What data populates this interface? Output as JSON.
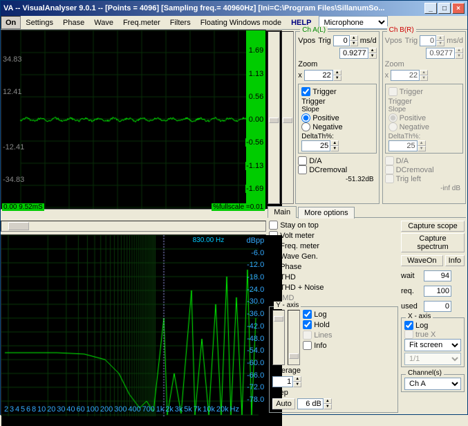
{
  "window": {
    "title": "VA -- VisualAnalyser 9.0.1 --  [Points = 4096]  [Sampling freq.= 40960Hz]  [Ini=C:\\Program Files\\SillanumSo..."
  },
  "menu": {
    "on": "On",
    "items": [
      "Settings",
      "Phase",
      "Wave",
      "Freq.meter",
      "Filters",
      "Floating Windows mode"
    ],
    "help": "HELP",
    "input_source": "Microphone"
  },
  "scope": {
    "time_info": "0.00   9.52mS",
    "scale_info": "%fullscale =0.01",
    "yticks_left": [
      "",
      "34.83",
      "12.41",
      "",
      "-12.41",
      "-34.83",
      ""
    ],
    "yticks_right": [
      "",
      "1.69",
      "1.13",
      "0.56",
      "0.00",
      "-0.56",
      "-1.13",
      "-1.69",
      ""
    ]
  },
  "spectrum": {
    "peak": "830.00 Hz",
    "db_unit": "dBpp",
    "yticks": [
      "-6.0",
      "-12.0",
      "-18.0",
      "-24.0",
      "-30.0",
      "-36.0",
      "-42.0",
      "-48.0",
      "-54.0",
      "-60.0",
      "-66.0",
      "-72.0",
      "-78.0"
    ],
    "xticks": [
      "2",
      "3",
      "4",
      "5",
      "6",
      "8",
      "10",
      "20",
      "30",
      "40",
      "60",
      "100",
      "200",
      "300",
      "400",
      "700",
      "1k",
      "2k",
      "3k",
      "5k",
      "7k",
      "10k",
      "20k"
    ],
    "xunit": "Hz"
  },
  "chA": {
    "title": "Ch A(L)",
    "vpos": "Vpos",
    "trig": "Trig",
    "ms": "0",
    "msd": "ms/d",
    "msval": "0.9277",
    "zoom": "Zoom",
    "zx": "x",
    "zv": "22",
    "trigger": "Trigger",
    "tg": "Trigger",
    "slope": "Slope",
    "pos": "Positive",
    "neg": "Negative",
    "delta": "DeltaTh%:",
    "dv": "25",
    "da": "D/A",
    "dcr": "DCremoval",
    "db": "-51.32dB"
  },
  "chB": {
    "title": "Ch B(R)",
    "vpos": "Vpos",
    "trig": "Trig",
    "ms": "0",
    "msd": "ms/d",
    "msval": "0.9277",
    "zoom": "Zoom",
    "zx": "x",
    "zv": "22",
    "trigger": "Trigger",
    "tg": "Trigger",
    "slope": "Slope",
    "pos": "Positive",
    "neg": "Negative",
    "delta": "DeltaTh%:",
    "dv": "25",
    "da": "D/A",
    "dcr": "DCremoval",
    "trleft": "Trig left",
    "db": "-inf dB"
  },
  "tabs": {
    "main": "Main",
    "more": "More options"
  },
  "opts": {
    "stay": "Stay on top",
    "vm": "Volt meter",
    "fm": "Freq. meter",
    "wg": "Wave Gen.",
    "ph": "Phase",
    "thd": "THD",
    "thdn": "THD + Noise",
    "imd": "IMD"
  },
  "buttons": {
    "cscope": "Capture scope",
    "cspec": "Capture spectrum",
    "waveon": "WaveOn",
    "info": "Info",
    "auto": "Auto"
  },
  "params": {
    "wait": "wait",
    "waitv": "94",
    "req": "req.",
    "reqv": "100",
    "used": "used",
    "usedv": "0"
  },
  "yaxis": {
    "title": "Y - axis",
    "log": "Log",
    "hold": "Hold",
    "lines": "Lines",
    "info": "Info",
    "avg": "Average",
    "avgv": "1",
    "step": "Step",
    "stepv": "6 dB"
  },
  "xaxis": {
    "title": "X - axis",
    "log": "Log",
    "truex": "true X",
    "fit": "Fit screen",
    "ratio": "1/1"
  },
  "chan": {
    "title": "Channel(s)",
    "sel": "Ch A"
  }
}
